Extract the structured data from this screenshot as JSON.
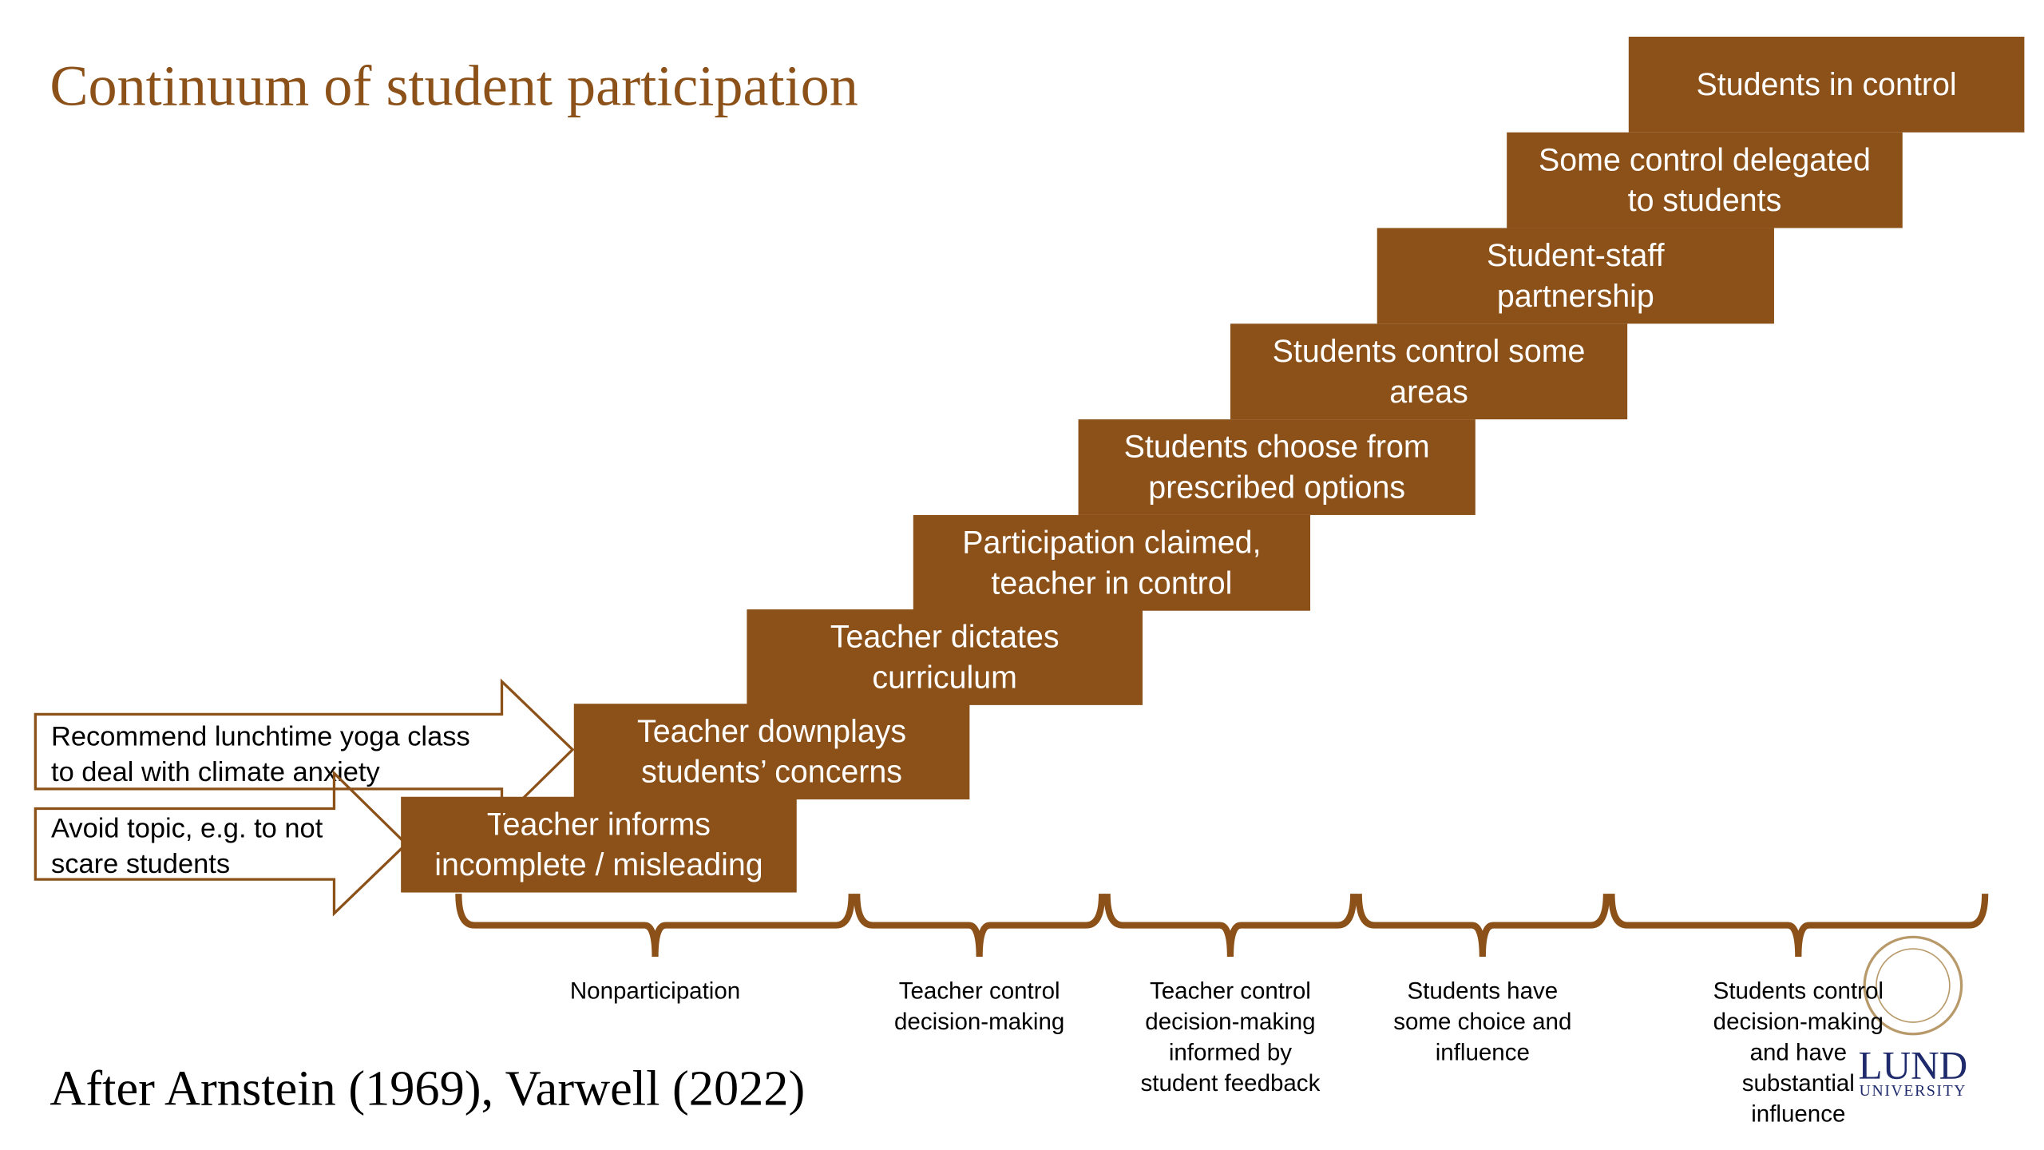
{
  "title": "Continuum of student participation",
  "citation": "After Arnstein (1969), Varwell (2022)",
  "steps": [
    {
      "lines": [
        "Teacher informs",
        "incomplete / misleading"
      ]
    },
    {
      "lines": [
        "Teacher downplays",
        "students’ concerns"
      ]
    },
    {
      "lines": [
        "Teacher dictates",
        "curriculum"
      ]
    },
    {
      "lines": [
        "Participation claimed,",
        "teacher in control"
      ]
    },
    {
      "lines": [
        "Students choose from",
        "prescribed options"
      ]
    },
    {
      "lines": [
        "Students control some",
        "areas"
      ]
    },
    {
      "lines": [
        "Student-staff",
        "partnership"
      ]
    },
    {
      "lines": [
        "Some control delegated",
        "to students"
      ]
    },
    {
      "lines": [
        "Students in control"
      ]
    }
  ],
  "arrows": [
    {
      "lines": [
        "Recommend lunchtime yoga class",
        "to deal with climate anxiety"
      ]
    },
    {
      "lines": [
        "Avoid topic, e.g. to not",
        "scare students"
      ]
    }
  ],
  "groups": [
    {
      "lines": [
        "Nonparticipation"
      ]
    },
    {
      "lines": [
        "Teacher control",
        "decision-making"
      ]
    },
    {
      "lines": [
        "Teacher control",
        "decision-making",
        "informed by",
        "student feedback"
      ]
    },
    {
      "lines": [
        "Students have",
        "some choice and",
        "influence"
      ]
    },
    {
      "lines": [
        "Students control",
        "decision-making",
        "and have",
        "substantial",
        "influence"
      ]
    }
  ],
  "logo": {
    "name": "LUND",
    "sub": "UNIVERSITY"
  }
}
